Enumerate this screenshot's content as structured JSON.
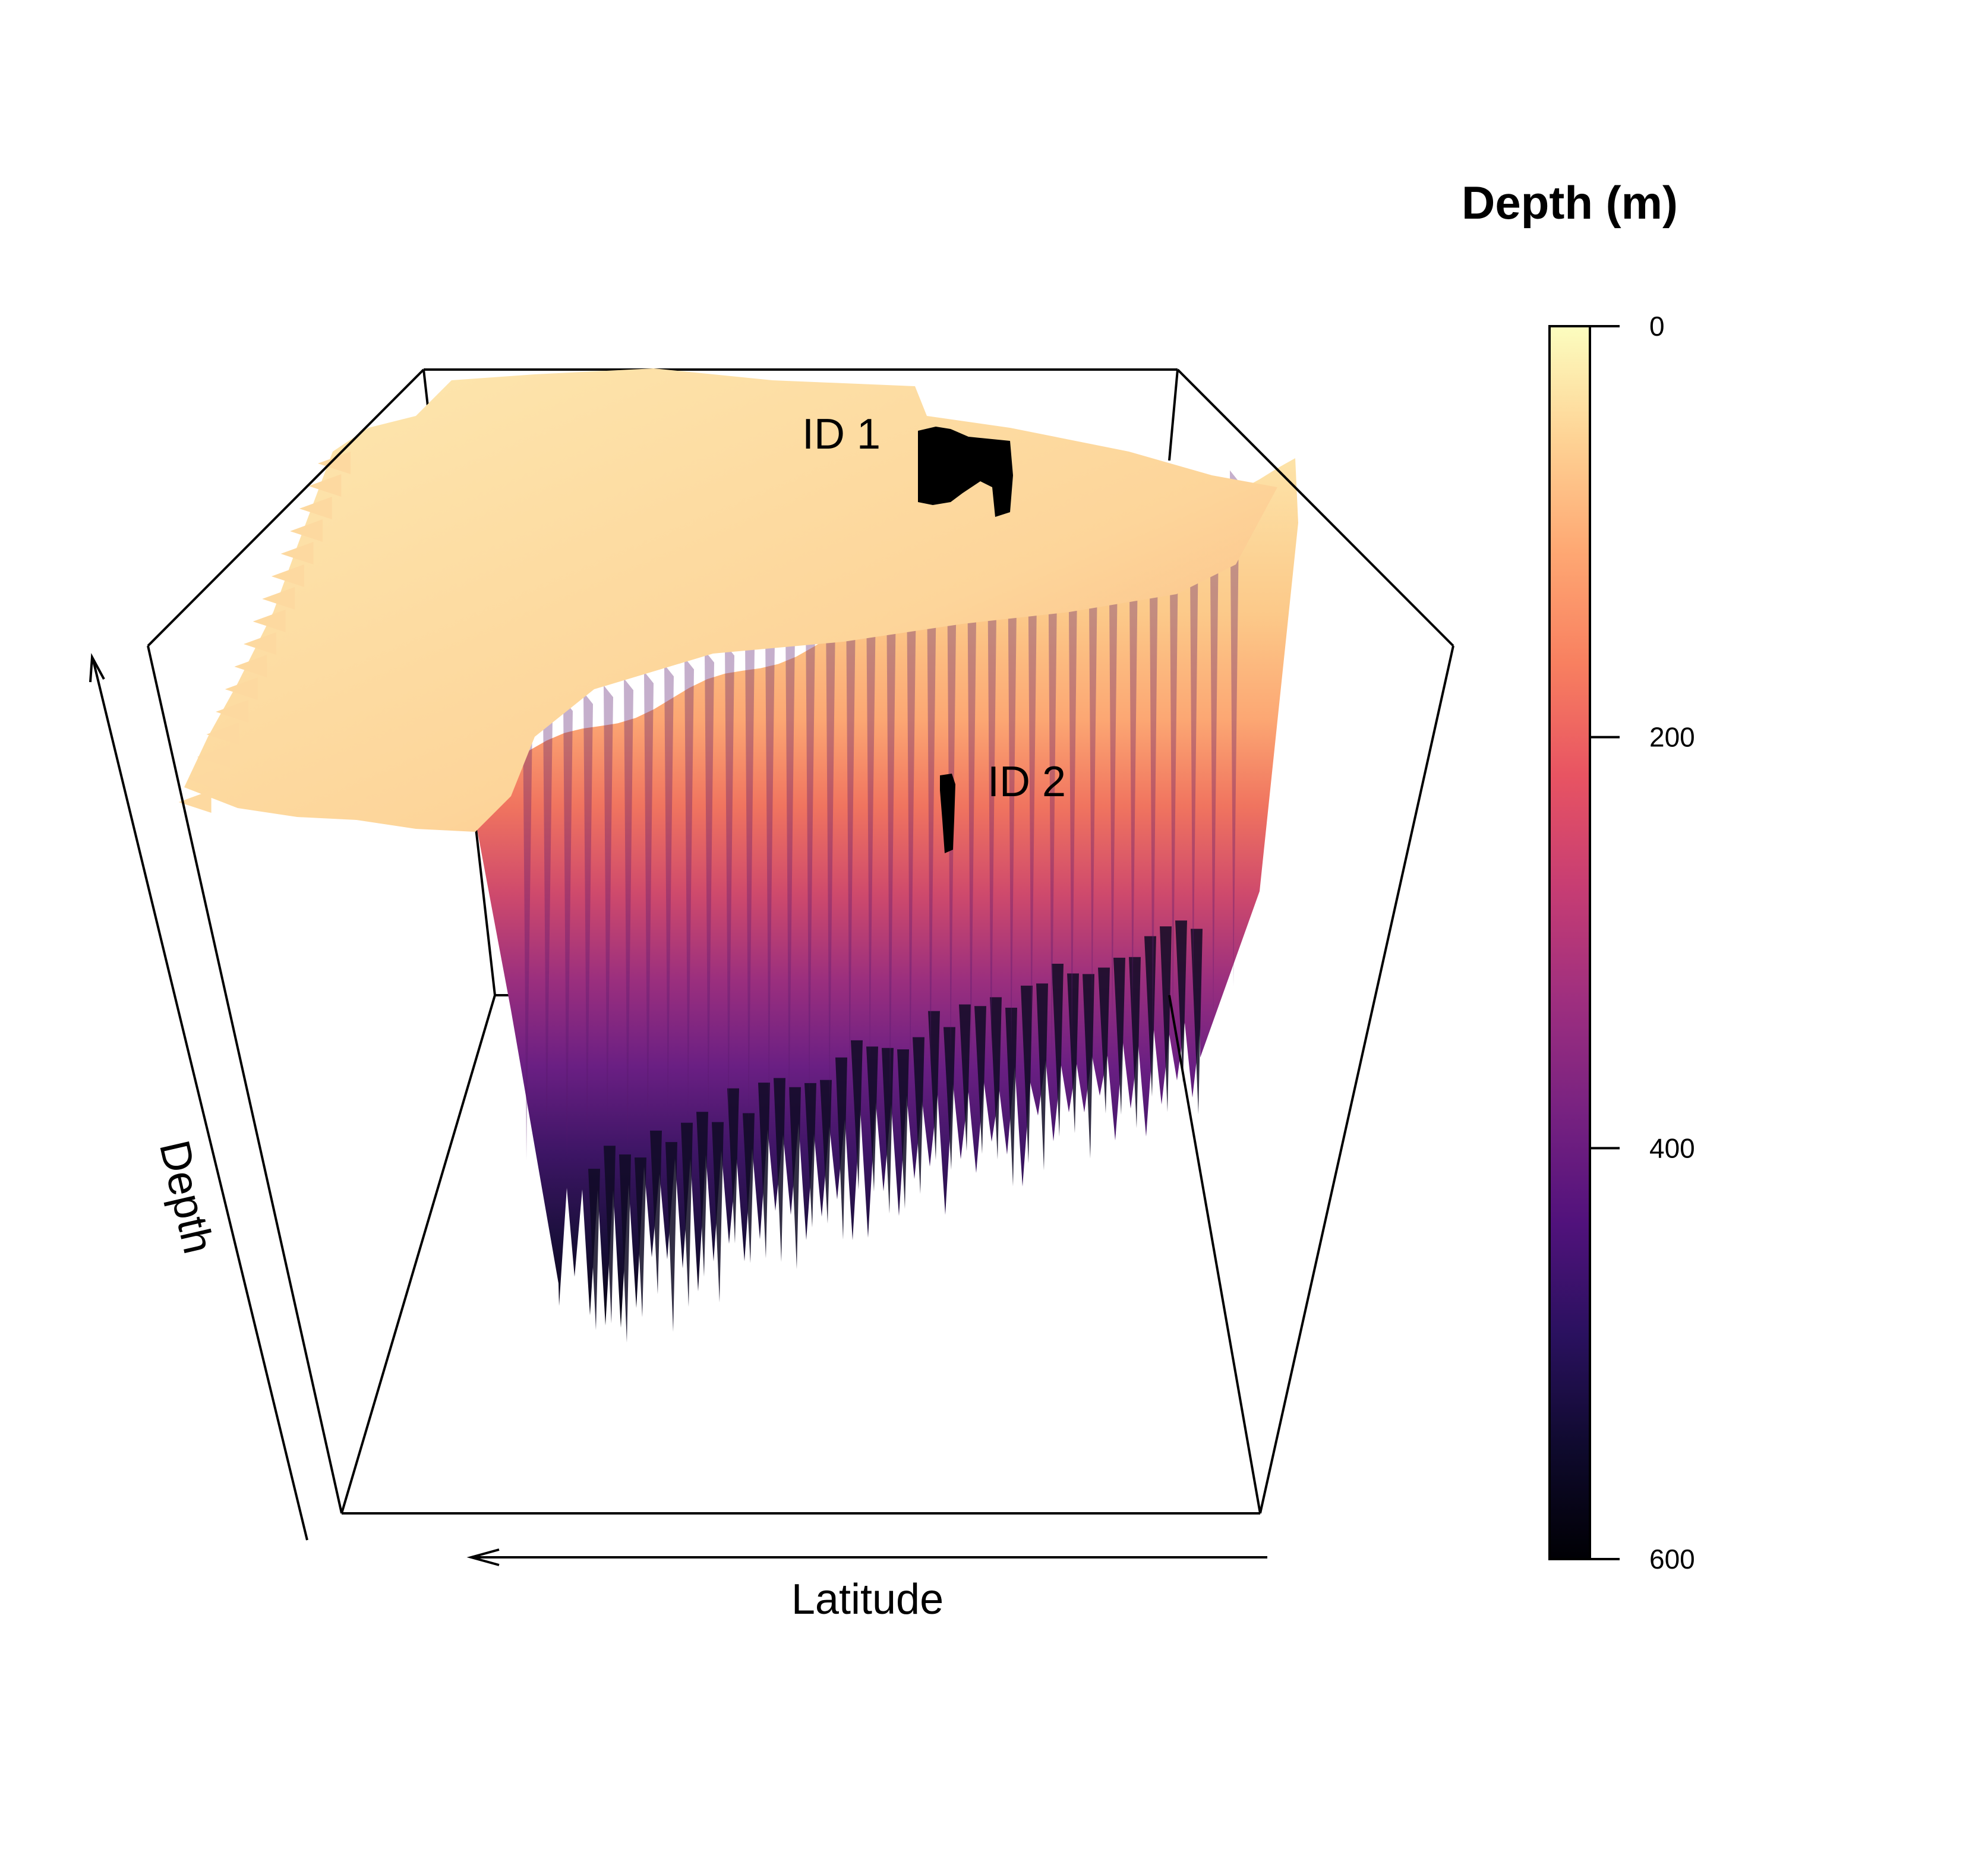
{
  "chart_data": {
    "type": "surface3d",
    "title": "",
    "axes": {
      "x": {
        "label": "Latitude"
      },
      "z": {
        "label": "Depth"
      }
    },
    "colorbar": {
      "title": "Depth (m)",
      "ticks": [
        "0",
        "200",
        "400",
        "600"
      ],
      "tick_values": [
        0,
        200,
        400,
        600
      ],
      "range": [
        0,
        600
      ],
      "palette": [
        "#fcfdbf",
        "#fed395",
        "#fea873",
        "#f88060",
        "#e85462",
        "#c73d73",
        "#9f2f7f",
        "#782281",
        "#51127c",
        "#2a115f",
        "#0f0a2e",
        "#000004"
      ]
    },
    "annotations": [
      {
        "label": "ID 1"
      },
      {
        "label": "ID 2"
      }
    ]
  }
}
